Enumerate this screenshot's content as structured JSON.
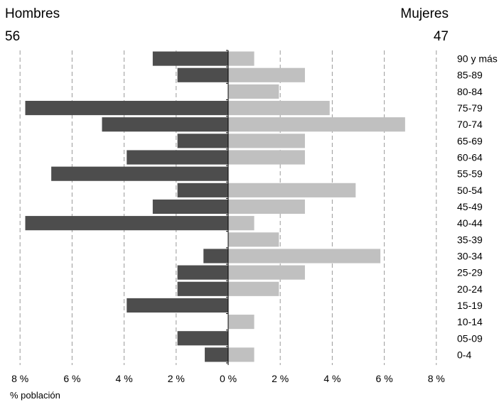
{
  "chart_data": {
    "type": "bar",
    "subtype": "population-pyramid",
    "categories": [
      "0-4",
      "05-09",
      "10-14",
      "15-19",
      "20-24",
      "25-29",
      "30-34",
      "35-39",
      "40-44",
      "45-49",
      "50-54",
      "55-59",
      "60-64",
      "65-69",
      "70-74",
      "75-79",
      "80-84",
      "85-89",
      "90 y más"
    ],
    "series": [
      {
        "name": "Hombres",
        "total": "56",
        "color": "#4d4d4d",
        "side": "left",
        "values": [
          0.9,
          1.95,
          0,
          3.9,
          1.95,
          1.95,
          0.95,
          0,
          7.8,
          2.9,
          1.95,
          6.8,
          3.9,
          1.95,
          4.85,
          7.8,
          0,
          1.95,
          2.9
        ]
      },
      {
        "name": "Mujeres",
        "total": "47",
        "color": "#c0c0c0",
        "side": "right",
        "values": [
          1.0,
          0,
          1.0,
          0,
          1.95,
          2.95,
          5.85,
          1.95,
          1.0,
          2.95,
          4.9,
          0,
          2.95,
          2.95,
          6.8,
          3.9,
          1.95,
          2.95,
          1.0
        ]
      }
    ],
    "x_ticks": [
      "8 %",
      "6 %",
      "4 %",
      "2 %",
      "0 %",
      "2 %",
      "4 %",
      "6 %",
      "8 %"
    ],
    "xlabel": "% población",
    "xlim": [
      -8,
      8
    ],
    "grid": "vertical-dashed",
    "category_order": "bottom-to-top"
  }
}
